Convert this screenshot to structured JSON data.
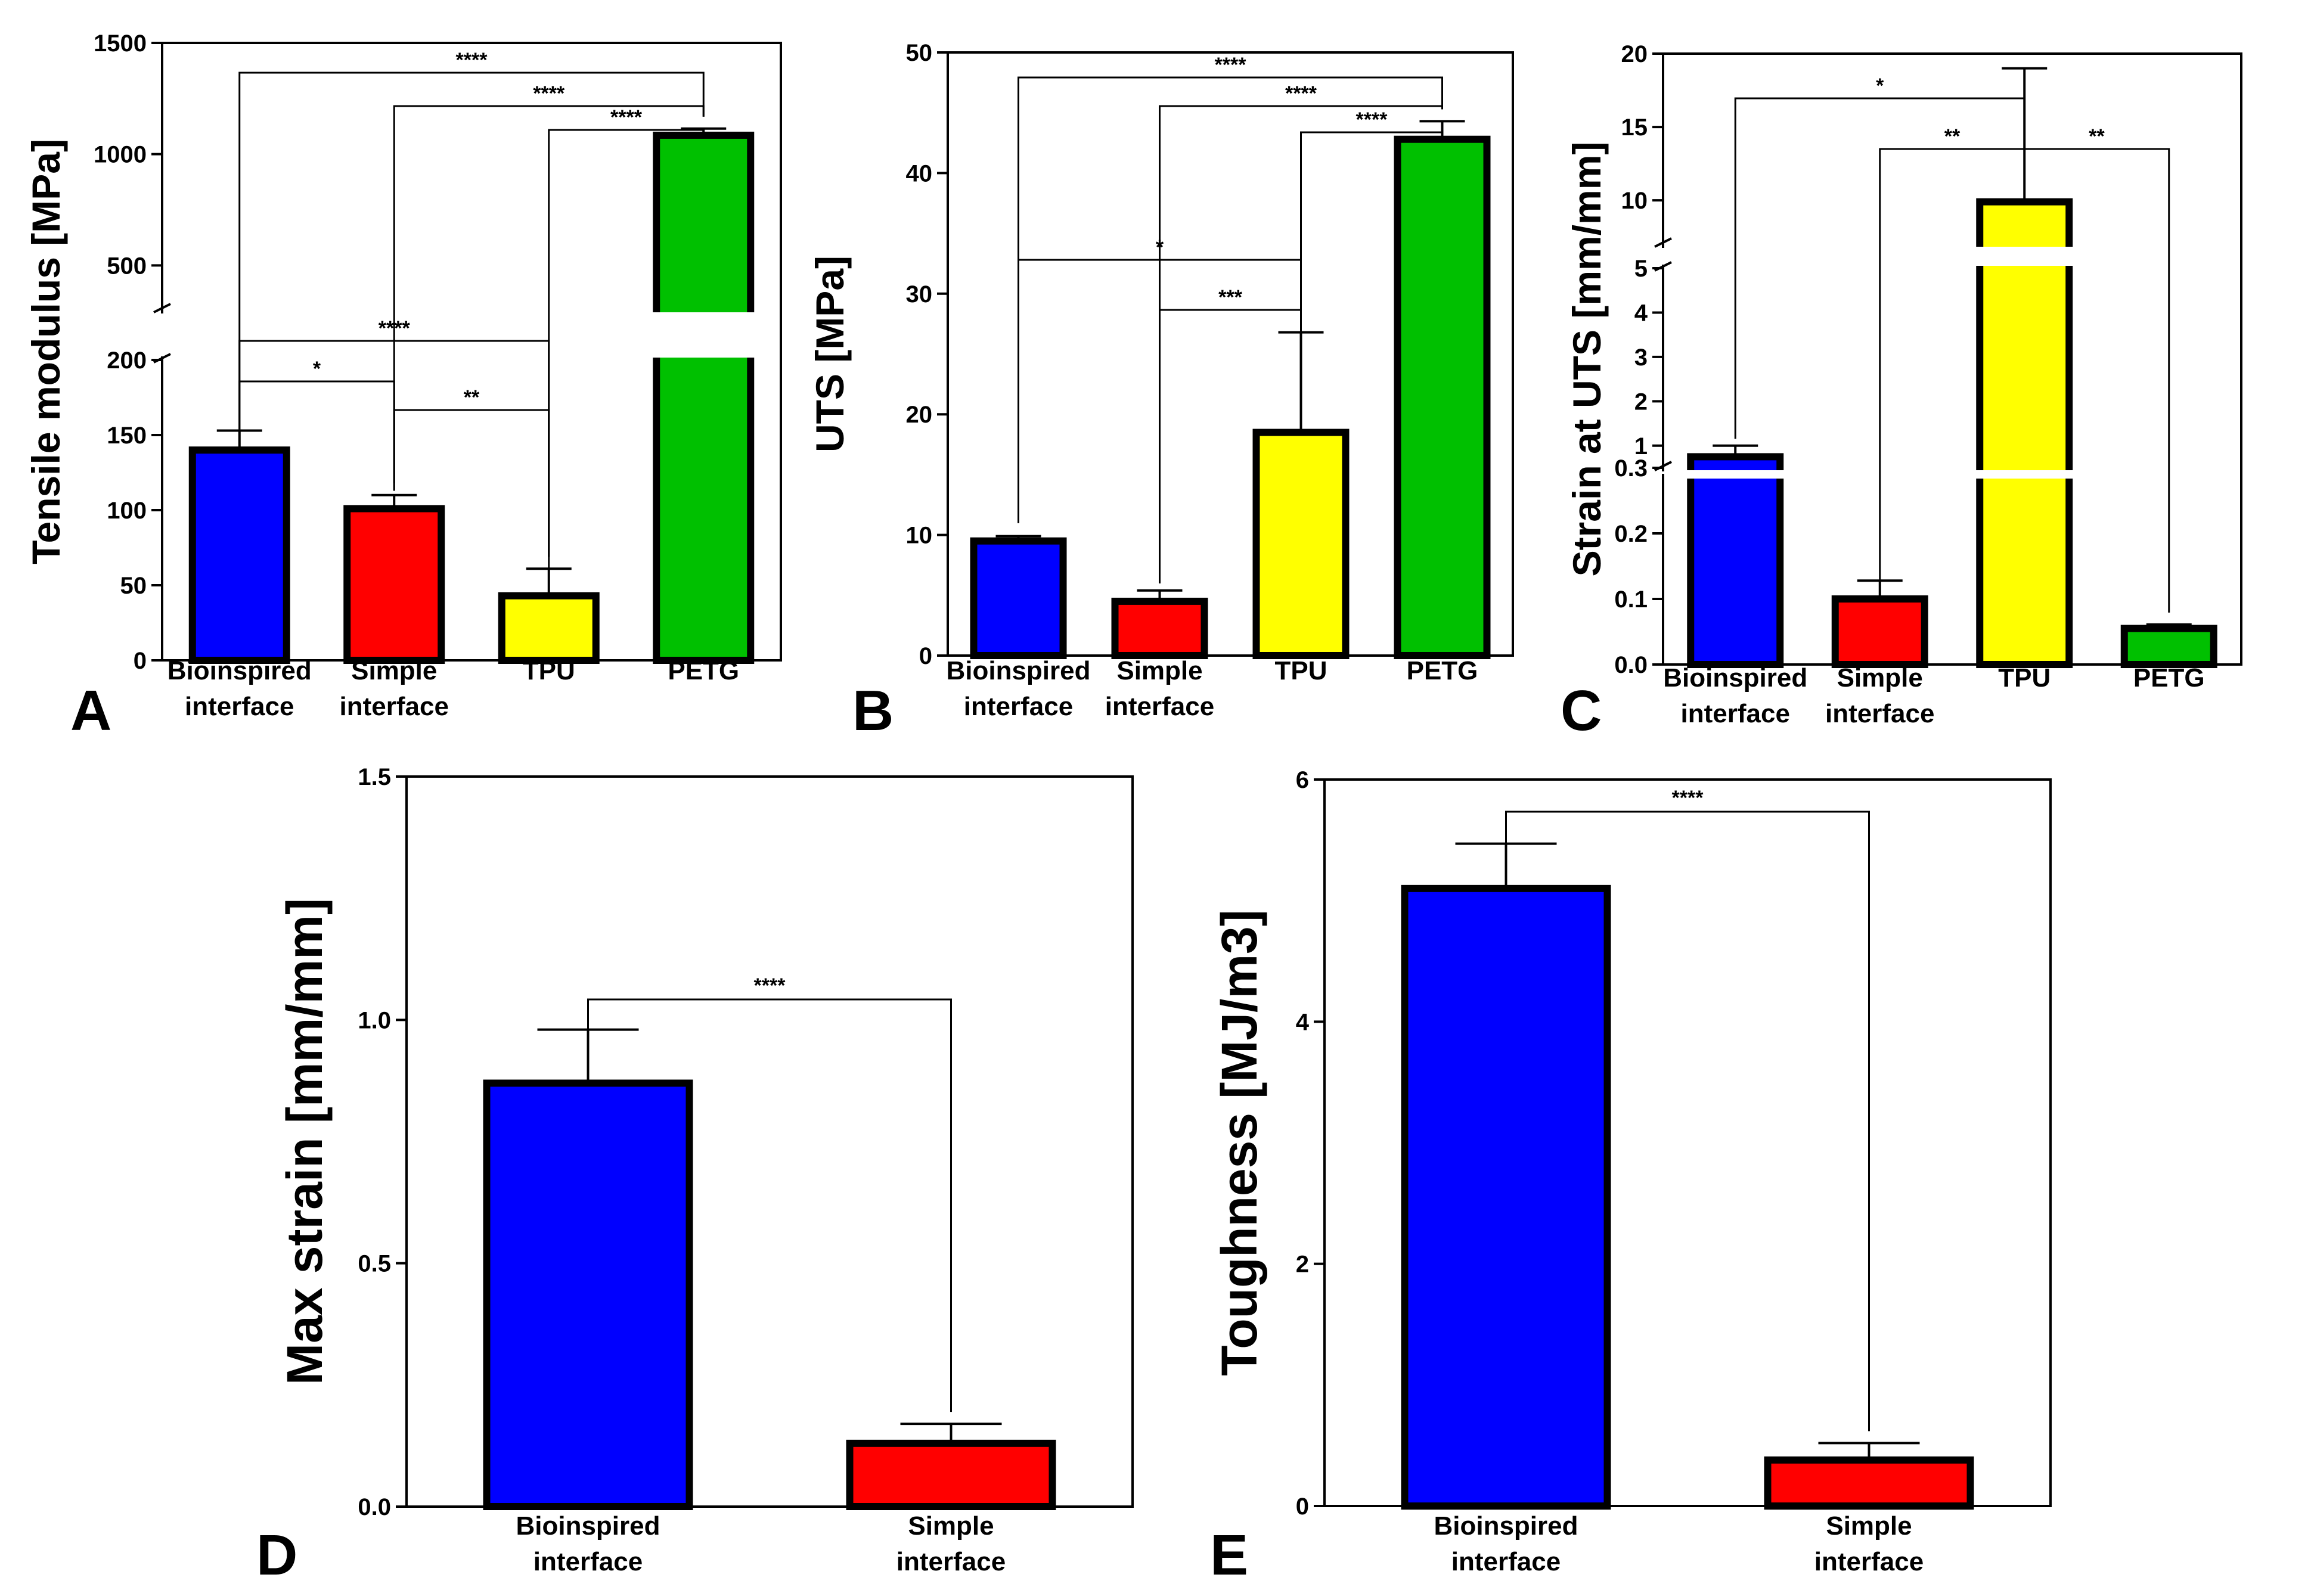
{
  "chart_data": [
    {
      "type": "bar",
      "panel": "A",
      "ylabel": "Tensile modulus [MPa]",
      "categories": [
        "Bioinspired\ninterface",
        "Simple\ninterface",
        "TPU",
        "PETG"
      ],
      "values": [
        140,
        101,
        43,
        1085
      ],
      "errors": [
        13,
        9,
        18,
        30
      ],
      "colors": [
        "#0000ff",
        "#ff0000",
        "#ffff00",
        "#00c000"
      ],
      "axis_breaks": [
        [
          200,
          300
        ]
      ],
      "ylim": [
        0,
        1500
      ],
      "yticks": [
        "0",
        "50",
        "100",
        "150",
        "200",
        "500",
        "1000",
        "1500"
      ],
      "comparisons": [
        {
          "from": 0,
          "to": 3,
          "label": "****"
        },
        {
          "from": 1,
          "to": 3,
          "label": "****"
        },
        {
          "from": 2,
          "to": 3,
          "label": "****"
        },
        {
          "from": 0,
          "to": 2,
          "label": "****"
        },
        {
          "from": 0,
          "to": 1,
          "label": "*"
        },
        {
          "from": 1,
          "to": 2,
          "label": "**"
        }
      ]
    },
    {
      "type": "bar",
      "panel": "B",
      "ylabel": "UTS [MPa]",
      "categories": [
        "Bioinspired\ninterface",
        "Simple\ninterface",
        "TPU",
        "PETG"
      ],
      "values": [
        9.5,
        4.5,
        18.5,
        42.8
      ],
      "errors": [
        0.4,
        0.9,
        8.3,
        1.5
      ],
      "colors": [
        "#0000ff",
        "#ff0000",
        "#ffff00",
        "#00c000"
      ],
      "ylim": [
        0,
        50
      ],
      "yticks": [
        "0",
        "10",
        "20",
        "30",
        "40",
        "50"
      ],
      "comparisons": [
        {
          "from": 0,
          "to": 3,
          "label": "****"
        },
        {
          "from": 1,
          "to": 3,
          "label": "****"
        },
        {
          "from": 2,
          "to": 3,
          "label": "****"
        },
        {
          "from": 0,
          "to": 2,
          "label": "*"
        },
        {
          "from": 1,
          "to": 2,
          "label": "***"
        }
      ]
    },
    {
      "type": "bar",
      "panel": "C",
      "ylabel": "Strain at UTS [mm/mm]",
      "categories": [
        "Bioinspired\ninterface",
        "Simple\ninterface",
        "TPU",
        "PETG"
      ],
      "values": [
        0.75,
        0.1,
        9.9,
        0.055
      ],
      "errors": [
        0.25,
        0.028,
        9.1,
        0.006
      ],
      "colors": [
        "#0000ff",
        "#ff0000",
        "#ffff00",
        "#00c000"
      ],
      "axis_breaks": [
        [
          0.3,
          0.5
        ],
        [
          5,
          7
        ]
      ],
      "ylim": [
        0,
        20
      ],
      "yticks": [
        "0.0",
        "0.1",
        "0.2",
        "0.3",
        "1",
        "2",
        "3",
        "4",
        "5",
        "10",
        "15",
        "20"
      ],
      "comparisons": [
        {
          "from": 0,
          "to": 2,
          "label": "*"
        },
        {
          "from": 1,
          "to": 2,
          "label": "**"
        },
        {
          "from": 2,
          "to": 3,
          "label": "**"
        }
      ]
    },
    {
      "type": "bar",
      "panel": "D",
      "ylabel": "Max strain [mm/mm]",
      "categories": [
        "Bioinspired\ninterface",
        "Simple\ninterface"
      ],
      "values": [
        0.87,
        0.13
      ],
      "errors": [
        0.11,
        0.04
      ],
      "colors": [
        "#0000ff",
        "#ff0000"
      ],
      "ylim": [
        0,
        1.5
      ],
      "yticks": [
        "0.0",
        "0.5",
        "1.0",
        "1.5"
      ],
      "comparisons": [
        {
          "from": 0,
          "to": 1,
          "label": "****"
        }
      ]
    },
    {
      "type": "bar",
      "panel": "E",
      "ylabel": "Toughness [MJ/m3]",
      "categories": [
        "Bioinspired\ninterface",
        "Simple\ninterface"
      ],
      "values": [
        5.1,
        0.38
      ],
      "errors": [
        0.37,
        0.14
      ],
      "colors": [
        "#0000ff",
        "#ff0000"
      ],
      "ylim": [
        0,
        6
      ],
      "yticks": [
        "0",
        "2",
        "4",
        "6"
      ],
      "comparisons": [
        {
          "from": 0,
          "to": 1,
          "label": "****"
        }
      ]
    }
  ]
}
